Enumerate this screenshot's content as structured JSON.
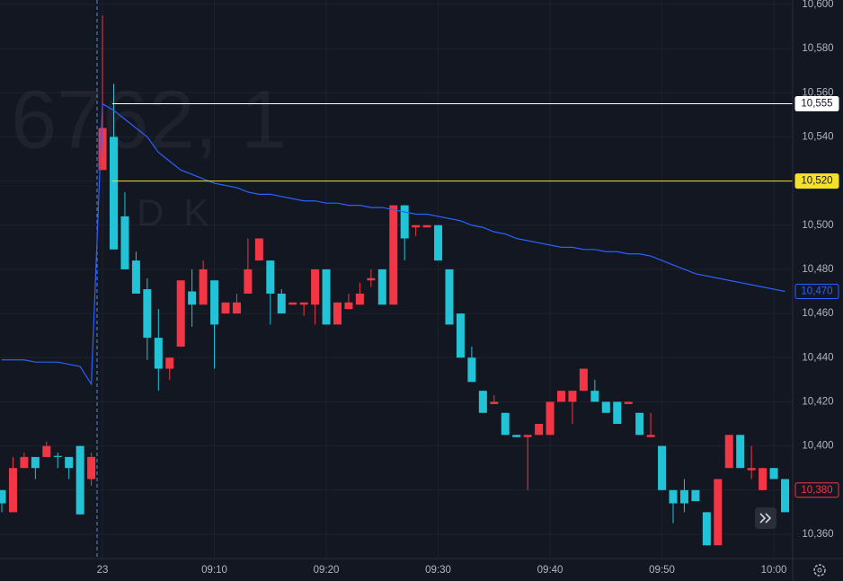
{
  "chart_data": {
    "type": "candlestick",
    "watermark": {
      "title": "6762, 1",
      "subtitle": "DK"
    },
    "categories": [
      null,
      null,
      null,
      null,
      null,
      null,
      null,
      null,
      null,
      "23",
      null,
      null,
      null,
      null,
      null,
      null,
      null,
      null,
      null,
      "09:10",
      null,
      null,
      null,
      null,
      null,
      null,
      null,
      null,
      null,
      "09:20",
      null,
      null,
      null,
      null,
      null,
      null,
      null,
      null,
      null,
      "09:30",
      null,
      null,
      null,
      null,
      null,
      null,
      null,
      null,
      null,
      "09:40",
      null,
      null,
      null,
      null,
      null,
      null,
      null,
      null,
      null,
      "09:50",
      null,
      null,
      null,
      null,
      null,
      null,
      null,
      null,
      null,
      "10:00",
      null
    ],
    "open": [
      10380,
      10370,
      10390,
      10395,
      10395,
      10395.5,
      10395,
      10400,
      10385,
      10525,
      10540,
      10504,
      10484,
      10471,
      10449,
      10435,
      10445,
      10470,
      10464,
      10475,
      10460,
      10460,
      10469,
      10484,
      10484,
      10469,
      10464,
      10464,
      10464,
      10480,
      10455,
      10462,
      10464,
      10475,
      10480,
      10464,
      10509,
      10499,
      10499,
      10500,
      10480,
      10460,
      10440,
      10425,
      10419,
      10415,
      10405,
      10404,
      10405,
      10405,
      10420,
      10420,
      10425,
      10425,
      10420,
      10420,
      10419,
      10415,
      10404,
      10400,
      10380,
      10380,
      10380,
      10370,
      10355,
      10390,
      10405,
      10389,
      10380,
      10390,
      10385
    ],
    "high": [
      10380,
      10395,
      10397,
      10395,
      10402,
      10397,
      10395,
      10400,
      10397,
      10595,
      10564,
      10515,
      10488,
      10476,
      10462,
      10440,
      10475,
      10480,
      10484,
      10475,
      10465,
      10469,
      10494,
      10494,
      10484,
      10471,
      10465,
      10465,
      10480,
      10480,
      10465,
      10469,
      10474,
      10480,
      10480,
      10509,
      10509,
      10500,
      10500,
      10500,
      10480,
      10460,
      10445,
      10425,
      10423,
      10415,
      10405,
      10405,
      10410,
      10420,
      10425,
      10425,
      10435,
      10430,
      10420,
      10420,
      10420,
      10415,
      10415,
      10400,
      10380,
      10385,
      10380,
      10370,
      10385,
      10405,
      10405,
      10400,
      10390,
      10390,
      10385
    ],
    "low": [
      10370,
      10370,
      10390,
      10385,
      10395,
      10390,
      10385,
      10369,
      10382,
      10525,
      10489,
      10480,
      10469,
      10439,
      10425,
      10430,
      10445,
      10454,
      10464,
      10435,
      10460,
      10460,
      10469,
      10484,
      10455,
      10460,
      10464,
      10459,
      10455,
      10455,
      10455,
      10462,
      10464,
      10472,
      10464,
      10464,
      10484,
      10495,
      10499,
      10484,
      10455,
      10440,
      10429,
      10415,
      10419,
      10405,
      10404,
      10380,
      10405,
      10405,
      10420,
      10410,
      10425,
      10420,
      10415,
      10410,
      10419,
      10405,
      10404,
      10380,
      10365,
      10370,
      10375,
      10355,
      10355,
      10390,
      10390,
      10385,
      10380,
      10385,
      10370
    ],
    "close": [
      10374,
      10390,
      10395,
      10390,
      10400,
      10395,
      10390,
      10369,
      10395,
      10544,
      10489,
      10480,
      10469,
      10449,
      10435,
      10440,
      10475,
      10464,
      10480,
      10455,
      10465,
      10465,
      10480,
      10494,
      10469,
      10460,
      10465,
      10465,
      10480,
      10455,
      10465,
      10465,
      10469,
      10476,
      10464,
      10509,
      10494,
      10500,
      10500,
      10484,
      10455,
      10440,
      10429,
      10415,
      10420,
      10405,
      10404,
      10405,
      10410,
      10420,
      10425,
      10425,
      10435,
      10420,
      10415,
      10410,
      10420,
      10405,
      10405,
      10380,
      10374,
      10374,
      10375,
      10355,
      10385,
      10405,
      10390,
      10390,
      10390,
      10385,
      10370
    ],
    "up_color": "#f23645",
    "down_color": "#22c3d6",
    "line": {
      "color": "#2962ff",
      "last_label": "10,470",
      "values": [
        10439,
        10439,
        10439,
        10438,
        10438,
        10438,
        10437,
        10436,
        10428,
        10555,
        10552,
        10548,
        10544,
        10540,
        10533,
        10529,
        10525,
        10523,
        10521,
        10519,
        10518,
        10517,
        10515,
        10514,
        10514,
        10513,
        10512,
        10511,
        10511,
        10510,
        10510,
        10509,
        10509,
        10508,
        10508,
        10507,
        10506,
        10505,
        10505,
        10504,
        10503,
        10502,
        10500,
        10499,
        10497,
        10496,
        10494,
        10493,
        10492,
        10491,
        10490,
        10490,
        10489,
        10489,
        10488,
        10488,
        10487,
        10487,
        10486,
        10484,
        10482,
        10480,
        10478,
        10477,
        10476,
        10475,
        10474,
        10473,
        10472,
        10471,
        10470
      ]
    },
    "price_lines": [
      {
        "value": 10555,
        "label": "10,555",
        "color": "#ffffff",
        "style": "line"
      },
      {
        "value": 10520,
        "label": "10,520",
        "color": "#f5e12b",
        "style": "line"
      },
      {
        "value": 10380,
        "label": "10,380",
        "color": "#f23645",
        "style": "label"
      }
    ],
    "ylim": [
      10349,
      10602
    ],
    "yticks": [
      {
        "value": 10360,
        "label": "10,360"
      },
      {
        "value": 10380,
        "label": "10,380"
      },
      {
        "value": 10400,
        "label": "10,400"
      },
      {
        "value": 10420,
        "label": "10,420"
      },
      {
        "value": 10440,
        "label": "10,440"
      },
      {
        "value": 10460,
        "label": "10,460"
      },
      {
        "value": 10480,
        "label": "10,480"
      },
      {
        "value": 10500,
        "label": "10,500"
      },
      {
        "value": 10520,
        "label": "10,520"
      },
      {
        "value": 10540,
        "label": "10,540"
      },
      {
        "value": 10560,
        "label": "10,560"
      },
      {
        "value": 10580,
        "label": "10,580"
      },
      {
        "value": 10600,
        "label": "10,600"
      }
    ],
    "grid": true
  }
}
